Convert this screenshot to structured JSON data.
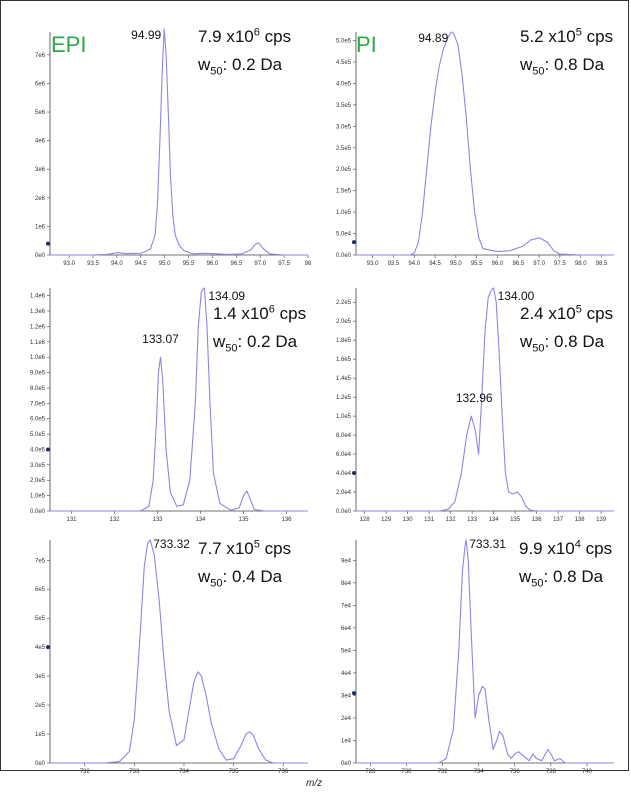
{
  "colors": {
    "trace": "#8b86e6",
    "axis": "#444444",
    "mode_label": "#2ea84a",
    "marker": "#1b2a6b"
  },
  "x_axis_label": "m/z",
  "chart_data": [
    {
      "id": "p11",
      "type": "line",
      "mode_label": "EPI",
      "intensity": {
        "value": "7.9 x10",
        "exp": "6",
        "unit": " cps"
      },
      "width": {
        "prefix": "w",
        "sub": "50",
        "text": ": 0.2 Da"
      },
      "xlim": [
        92.6,
        98.0
      ],
      "ylim": [
        0,
        7800000
      ],
      "xticks": [
        93.0,
        93.5,
        94.0,
        94.5,
        95.0,
        95.5,
        96.0,
        96.5,
        97.0,
        97.5,
        98.0
      ],
      "xtick_labels": [
        "93.0",
        "93.5",
        "94.0",
        "94.5",
        "95.0",
        "95.5",
        "96.0",
        "96.5",
        "97.0",
        "97.5",
        "98"
      ],
      "yticks": [
        0,
        1000000,
        2000000,
        3000000,
        4000000,
        5000000,
        6000000,
        7000000
      ],
      "ytick_labels": [
        "0e0",
        "1e6",
        "2e6",
        "3e6",
        "4e6",
        "5e6",
        "6e6",
        "7e6"
      ],
      "annotations": [
        {
          "x": 94.99,
          "y": 7900000,
          "text": "94.99"
        }
      ],
      "marker_y": 400000,
      "x": [
        92.6,
        93.0,
        93.5,
        93.8,
        94.0,
        94.2,
        94.5,
        94.7,
        94.8,
        94.85,
        94.9,
        94.95,
        94.99,
        95.03,
        95.08,
        95.12,
        95.17,
        95.22,
        95.3,
        95.4,
        95.6,
        95.8,
        96.0,
        96.3,
        96.6,
        96.8,
        96.9,
        96.97,
        97.05,
        97.2,
        97.5,
        98.0
      ],
      "values": [
        0,
        0,
        0,
        20000,
        80000,
        50000,
        60000,
        200000,
        700000,
        1800000,
        4000000,
        6500000,
        7900000,
        7000000,
        4800000,
        2800000,
        1400000,
        700000,
        350000,
        150000,
        40000,
        60000,
        50000,
        20000,
        30000,
        180000,
        380000,
        420000,
        250000,
        40000,
        0,
        0
      ]
    },
    {
      "id": "p12",
      "type": "line",
      "mode_label": "PI",
      "intensity": {
        "value": "5.2 x10",
        "exp": "5",
        "unit": " cps"
      },
      "width": {
        "prefix": "w",
        "sub": "50",
        "text": ": 0.8 Da"
      },
      "xlim": [
        92.6,
        98.8
      ],
      "ylim": [
        0,
        520000
      ],
      "xticks": [
        93.0,
        93.5,
        94.0,
        94.5,
        95.0,
        95.5,
        96.0,
        96.5,
        97.0,
        97.5,
        98.0,
        98.5
      ],
      "xtick_labels": [
        "93.0",
        "93.5",
        "94.0",
        "94.5",
        "95.0",
        "95.5",
        "96.0",
        "96.5",
        "97.0",
        "97.5",
        "98.0",
        "98.5"
      ],
      "yticks": [
        0,
        50000,
        100000,
        150000,
        200000,
        250000,
        300000,
        350000,
        400000,
        450000,
        500000
      ],
      "ytick_labels": [
        "0.0e0",
        "5.0e4",
        "1.0e5",
        "1.5e5",
        "2.0e5",
        "2.5e5",
        "3.0e5",
        "3.5e5",
        "4.0e5",
        "4.5e5",
        "5.0e5"
      ],
      "annotations": [
        {
          "x": 94.89,
          "y": 520000,
          "text": "94.89"
        }
      ],
      "marker_y": 30000,
      "x": [
        92.6,
        93.5,
        93.9,
        94.0,
        94.1,
        94.2,
        94.3,
        94.4,
        94.5,
        94.6,
        94.7,
        94.8,
        94.89,
        94.95,
        95.05,
        95.15,
        95.25,
        95.35,
        95.45,
        95.55,
        95.65,
        95.8,
        96.0,
        96.3,
        96.6,
        96.8,
        97.0,
        97.2,
        97.35,
        97.5,
        98.0,
        98.8
      ],
      "values": [
        0,
        0,
        0,
        5000,
        30000,
        100000,
        200000,
        300000,
        380000,
        440000,
        480000,
        505000,
        520000,
        515000,
        490000,
        420000,
        320000,
        200000,
        100000,
        40000,
        15000,
        12000,
        8000,
        10000,
        20000,
        35000,
        40000,
        30000,
        10000,
        2000,
        0,
        0
      ]
    },
    {
      "id": "p21",
      "type": "line",
      "mode_label": "",
      "intensity": {
        "value": "1.4 x10",
        "exp": "6",
        "unit": " cps"
      },
      "width": {
        "prefix": "w",
        "sub": "50",
        "text": ": 0.2 Da"
      },
      "xlim": [
        130.5,
        136.5
      ],
      "ylim": [
        0,
        1450000
      ],
      "xticks": [
        131,
        132,
        133,
        134,
        135,
        136
      ],
      "xtick_labels": [
        "131",
        "132",
        "133",
        "134",
        "135",
        "136"
      ],
      "yticks": [
        0,
        100000,
        200000,
        300000,
        400000,
        500000,
        600000,
        700000,
        800000,
        900000,
        1000000,
        1100000,
        1200000,
        1300000,
        1400000
      ],
      "ytick_labels": [
        "0.0e0",
        "1.0e5",
        "2.0e5",
        "3.0e5",
        "4.0e5",
        "5.0e5",
        "6.0e5",
        "7.0e5",
        "8.0e5",
        "9.0e5",
        "1.0e6",
        "1.1e6",
        "1.2e6",
        "1.3e6",
        "1.4e6"
      ],
      "annotations": [
        {
          "x": 133.07,
          "y": 1000000,
          "text": "133.07"
        },
        {
          "x": 134.09,
          "y": 1450000,
          "text": "134.09"
        }
      ],
      "marker_y": 400000,
      "x": [
        130.5,
        132.0,
        132.6,
        132.8,
        132.9,
        132.98,
        133.02,
        133.07,
        133.12,
        133.2,
        133.3,
        133.45,
        133.6,
        133.75,
        133.88,
        133.95,
        134.02,
        134.09,
        134.15,
        134.22,
        134.3,
        134.45,
        134.7,
        134.9,
        135.0,
        135.08,
        135.15,
        135.25,
        135.5,
        136.5
      ],
      "values": [
        0,
        0,
        0,
        30000,
        200000,
        600000,
        900000,
        1000000,
        850000,
        400000,
        120000,
        30000,
        40000,
        200000,
        700000,
        1200000,
        1430000,
        1450000,
        1200000,
        700000,
        250000,
        50000,
        5000,
        20000,
        100000,
        130000,
        80000,
        10000,
        0,
        0
      ]
    },
    {
      "id": "p22",
      "type": "line",
      "mode_label": "",
      "intensity": {
        "value": "2.4 x10",
        "exp": "5",
        "unit": " cps"
      },
      "width": {
        "prefix": "w",
        "sub": "50",
        "text": ": 0.8 Da"
      },
      "xlim": [
        127.6,
        139.6
      ],
      "ylim": [
        0,
        235000
      ],
      "xticks": [
        128,
        129,
        130,
        131,
        132,
        133,
        134,
        135,
        136,
        137,
        138,
        139
      ],
      "xtick_labels": [
        "128",
        "129",
        "130",
        "131",
        "132",
        "133",
        "134",
        "135",
        "136",
        "137",
        "138",
        "139"
      ],
      "yticks": [
        0,
        20000,
        40000,
        60000,
        80000,
        100000,
        120000,
        140000,
        160000,
        180000,
        200000,
        220000
      ],
      "ytick_labels": [
        "0.0e0",
        "2.0e4",
        "4.0e4",
        "6.0e4",
        "8.0e4",
        "1.0e5",
        "1.2e5",
        "1.4e5",
        "1.6e5",
        "1.8e5",
        "2.0e5",
        "2.2e5"
      ],
      "annotations": [
        {
          "x": 132.96,
          "y": 100000,
          "text": "132.96"
        },
        {
          "x": 134.0,
          "y": 235000,
          "text": "134.00"
        }
      ],
      "marker_y": 40000,
      "x": [
        127.6,
        131.5,
        131.9,
        132.2,
        132.5,
        132.75,
        132.96,
        133.15,
        133.3,
        133.45,
        133.6,
        133.75,
        133.9,
        134.0,
        134.12,
        134.25,
        134.4,
        134.55,
        134.7,
        134.9,
        135.1,
        135.3,
        135.5,
        135.7,
        136.0,
        139.6
      ],
      "values": [
        0,
        0,
        2000,
        10000,
        40000,
        80000,
        100000,
        85000,
        60000,
        120000,
        190000,
        225000,
        233000,
        235000,
        220000,
        170000,
        100000,
        40000,
        20000,
        18000,
        20000,
        15000,
        5000,
        1000,
        0,
        0
      ]
    },
    {
      "id": "p31",
      "type": "line",
      "mode_label": "",
      "intensity": {
        "value": "7.7 x10",
        "exp": "5",
        "unit": " cps"
      },
      "width": {
        "prefix": "w",
        "sub": "50",
        "text": ": 0.4 Da"
      },
      "xlim": [
        731.3,
        736.5
      ],
      "ylim": [
        0,
        770000
      ],
      "xticks": [
        732,
        733,
        734,
        735,
        736
      ],
      "xtick_labels": [
        "732",
        "733",
        "734",
        "735",
        "736"
      ],
      "yticks": [
        0,
        100000,
        200000,
        300000,
        400000,
        500000,
        600000,
        700000
      ],
      "ytick_labels": [
        "0e0",
        "1e5",
        "2e5",
        "3e5",
        "4e5",
        "5e5",
        "6e5",
        "7e5"
      ],
      "annotations": [
        {
          "x": 733.32,
          "y": 770000,
          "text": "733.32"
        }
      ],
      "marker_y": 400000,
      "x": [
        731.3,
        732.4,
        732.7,
        732.9,
        733.0,
        733.1,
        733.2,
        733.27,
        733.32,
        733.4,
        733.5,
        733.6,
        733.7,
        733.85,
        734.0,
        734.1,
        734.2,
        734.28,
        734.35,
        734.45,
        734.55,
        734.7,
        734.85,
        735.0,
        735.15,
        735.25,
        735.32,
        735.4,
        735.5,
        735.65,
        735.8,
        736.5
      ],
      "values": [
        0,
        0,
        5000,
        40000,
        150000,
        400000,
        680000,
        760000,
        770000,
        720000,
        560000,
        350000,
        180000,
        60000,
        80000,
        180000,
        280000,
        315000,
        300000,
        230000,
        140000,
        50000,
        10000,
        15000,
        60000,
        100000,
        108000,
        95000,
        50000,
        10000,
        0,
        0
      ]
    },
    {
      "id": "p32",
      "type": "line",
      "mode_label": "",
      "intensity": {
        "value": "9.9 x10",
        "exp": "4",
        "unit": " cps"
      },
      "width": {
        "prefix": "w",
        "sub": "50",
        "text": ": 0.8 Da"
      },
      "xlim": [
        727.2,
        741.5
      ],
      "ylim": [
        0,
        99000
      ],
      "xticks": [
        728,
        730,
        732,
        734,
        736,
        738,
        740
      ],
      "xtick_labels": [
        "728",
        "730",
        "732",
        "734",
        "736",
        "738",
        "740"
      ],
      "yticks": [
        0,
        10000,
        20000,
        30000,
        40000,
        50000,
        60000,
        70000,
        80000,
        90000
      ],
      "ytick_labels": [
        "0e0",
        "1e4",
        "2e4",
        "3e4",
        "4e4",
        "5e4",
        "6e4",
        "7e4",
        "8e4",
        "9e4"
      ],
      "annotations": [
        {
          "x": 733.31,
          "y": 99000,
          "text": "733.31"
        }
      ],
      "marker_y": 31000,
      "x": [
        727.2,
        731.8,
        732.2,
        732.6,
        732.9,
        733.1,
        733.25,
        733.31,
        733.42,
        733.6,
        733.8,
        734.0,
        734.2,
        734.35,
        734.55,
        734.8,
        735.0,
        735.15,
        735.35,
        735.6,
        735.8,
        736.0,
        736.2,
        736.5,
        736.8,
        737.0,
        737.2,
        737.5,
        737.7,
        737.85,
        738.0,
        738.2,
        738.5,
        738.8,
        739.2,
        741.5
      ],
      "values": [
        0,
        0,
        2000,
        15000,
        50000,
        85000,
        97000,
        99000,
        90000,
        55000,
        20000,
        30000,
        34000,
        33000,
        20000,
        6000,
        10000,
        14000,
        12000,
        4000,
        2000,
        4000,
        5000,
        3000,
        1000,
        4000,
        2000,
        1000,
        4000,
        6000,
        4000,
        1000,
        2000,
        0,
        0,
        0
      ]
    }
  ]
}
